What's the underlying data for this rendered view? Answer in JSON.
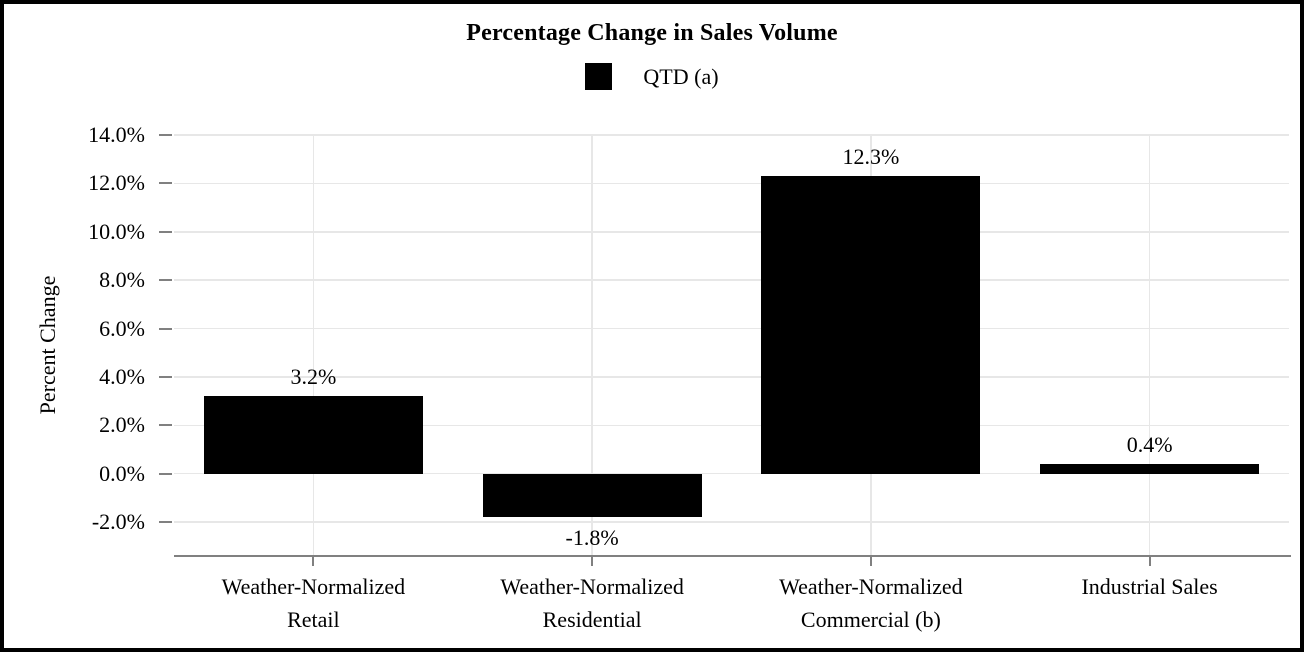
{
  "window": {
    "background_color": "#ffffff",
    "border_color": "#000000"
  },
  "chart_data": {
    "type": "bar",
    "title": "Percentage Change in Sales Volume",
    "xlabel": "",
    "ylabel": "Percent Change",
    "categories": [
      "Weather-Normalized Retail",
      "Weather-Normalized Residential",
      "Weather-Normalized Commercial (b)",
      "Industrial Sales"
    ],
    "category_display_lines": [
      [
        "Weather-Normalized",
        "Retail"
      ],
      [
        "Weather-Normalized",
        "Residential"
      ],
      [
        "Weather-Normalized",
        "Commercial (b)"
      ],
      [
        "Industrial Sales"
      ]
    ],
    "series": [
      {
        "name": "QTD (a)",
        "color": "#000000",
        "values": [
          3.2,
          -1.8,
          12.3,
          0.4
        ],
        "value_labels": [
          "3.2%",
          "-1.8%",
          "12.3%",
          "0.4%"
        ]
      }
    ],
    "ylim": [
      -3.4,
      14.0
    ],
    "ytick_values": [
      14,
      12,
      10,
      8,
      6,
      4,
      2,
      0,
      -2
    ],
    "ytick_labels": [
      "14.0%",
      "12.0%",
      "10.0%",
      "8.0%",
      "6.0%",
      "4.0%",
      "2.0%",
      "0.0%",
      "-2.0%"
    ],
    "grid": true,
    "legend_position": "top-center",
    "colors": {
      "gridline": "#e7e7e7",
      "axis_line": "#808080",
      "tick_mark": "#808080",
      "text": "#000000"
    }
  }
}
